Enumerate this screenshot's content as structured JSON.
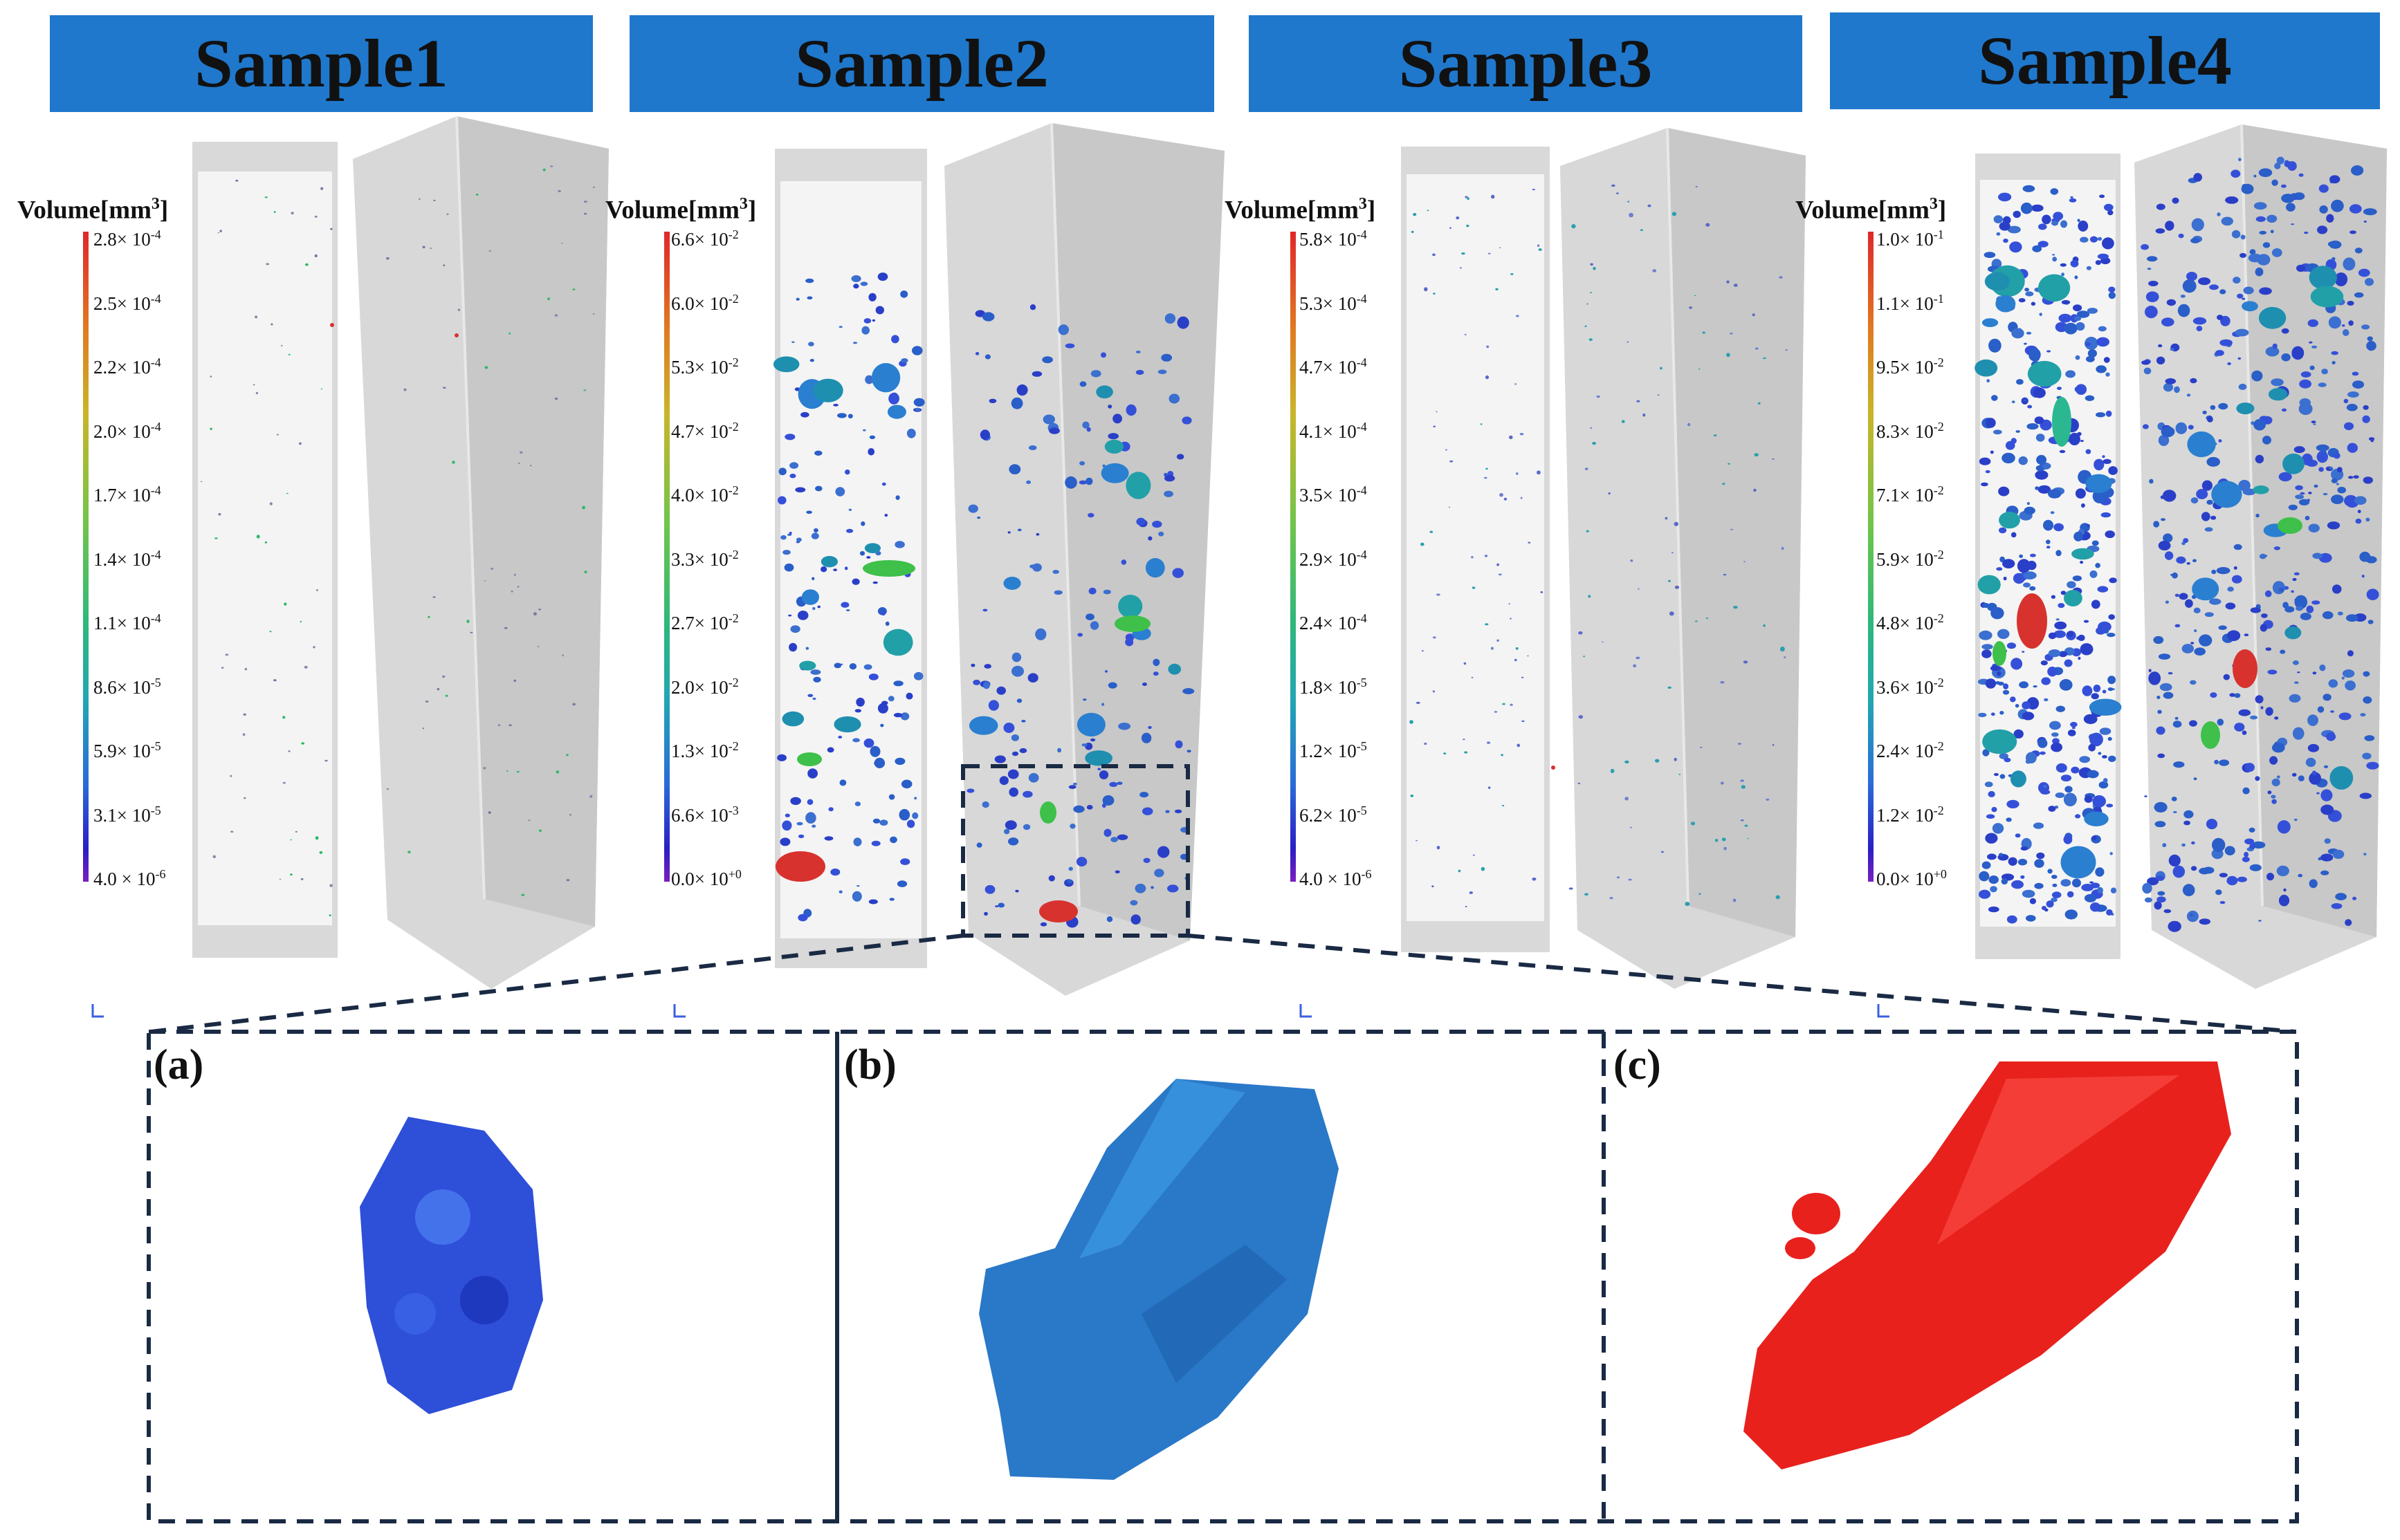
{
  "samples": [
    {
      "title": "Sample1",
      "colorbar_title": "Volume[mm",
      "colorbar_title_sup": "3",
      "colorbar_title_end": "]",
      "ticks": [
        [
          "2.8× 10",
          "-4"
        ],
        [
          "2.5× 10",
          "-4"
        ],
        [
          "2.2× 10",
          "-4"
        ],
        [
          "2.0× 10",
          "-4"
        ],
        [
          "1.7× 10",
          "-4"
        ],
        [
          "1.4× 10",
          "-4"
        ],
        [
          "1.1× 10",
          "-4"
        ],
        [
          "8.6× 10",
          "-5"
        ],
        [
          "5.9× 10",
          "-5"
        ],
        [
          "3.1× 10",
          "-5"
        ],
        [
          "4.0 × 10",
          "-6"
        ]
      ]
    },
    {
      "title": "Sample2",
      "colorbar_title": "Volume[mm",
      "colorbar_title_sup": "3",
      "colorbar_title_end": "]",
      "ticks": [
        [
          "6.6× 10",
          "-2"
        ],
        [
          "6.0× 10",
          "-2"
        ],
        [
          "5.3× 10",
          "-2"
        ],
        [
          "4.7× 10",
          "-2"
        ],
        [
          "4.0× 10",
          "-2"
        ],
        [
          "3.3× 10",
          "-2"
        ],
        [
          "2.7× 10",
          "-2"
        ],
        [
          "2.0× 10",
          "-2"
        ],
        [
          "1.3× 10",
          "-2"
        ],
        [
          "6.6× 10",
          "-3"
        ],
        [
          "0.0× 10",
          "+0"
        ]
      ]
    },
    {
      "title": "Sample3",
      "colorbar_title": "Volume[mm",
      "colorbar_title_sup": "3",
      "colorbar_title_end": "]",
      "ticks": [
        [
          "5.8× 10",
          "-4"
        ],
        [
          "5.3× 10",
          "-4"
        ],
        [
          "4.7× 10",
          "-4"
        ],
        [
          "4.1× 10",
          "-4"
        ],
        [
          "3.5× 10",
          "-4"
        ],
        [
          "2.9× 10",
          "-4"
        ],
        [
          "2.4× 10",
          "-4"
        ],
        [
          "1.8× 10",
          "-5"
        ],
        [
          "1.2× 10",
          "-5"
        ],
        [
          "6.2× 10",
          "-5"
        ],
        [
          "4.0 × 10",
          "-6"
        ]
      ]
    },
    {
      "title": "Sample4",
      "colorbar_title": "Volume[mm",
      "colorbar_title_sup": "3",
      "colorbar_title_end": "]",
      "ticks": [
        [
          "1.0× 10",
          "-1"
        ],
        [
          "1.1× 10",
          "-1"
        ],
        [
          "9.5× 10",
          "-2"
        ],
        [
          "8.3× 10",
          "-2"
        ],
        [
          "7.1× 10",
          "-2"
        ],
        [
          "5.9× 10",
          "-2"
        ],
        [
          "4.8× 10",
          "-2"
        ],
        [
          "3.6× 10",
          "-2"
        ],
        [
          "2.4× 10",
          "-2"
        ],
        [
          "1.2× 10",
          "-2"
        ],
        [
          "0.0× 10",
          "+0"
        ]
      ]
    }
  ],
  "panels": [
    {
      "label": "(a)",
      "color": "#2448d8"
    },
    {
      "label": "(b)",
      "color": "#2a7fd0"
    },
    {
      "label": "(c)",
      "color": "#e8241f"
    }
  ]
}
